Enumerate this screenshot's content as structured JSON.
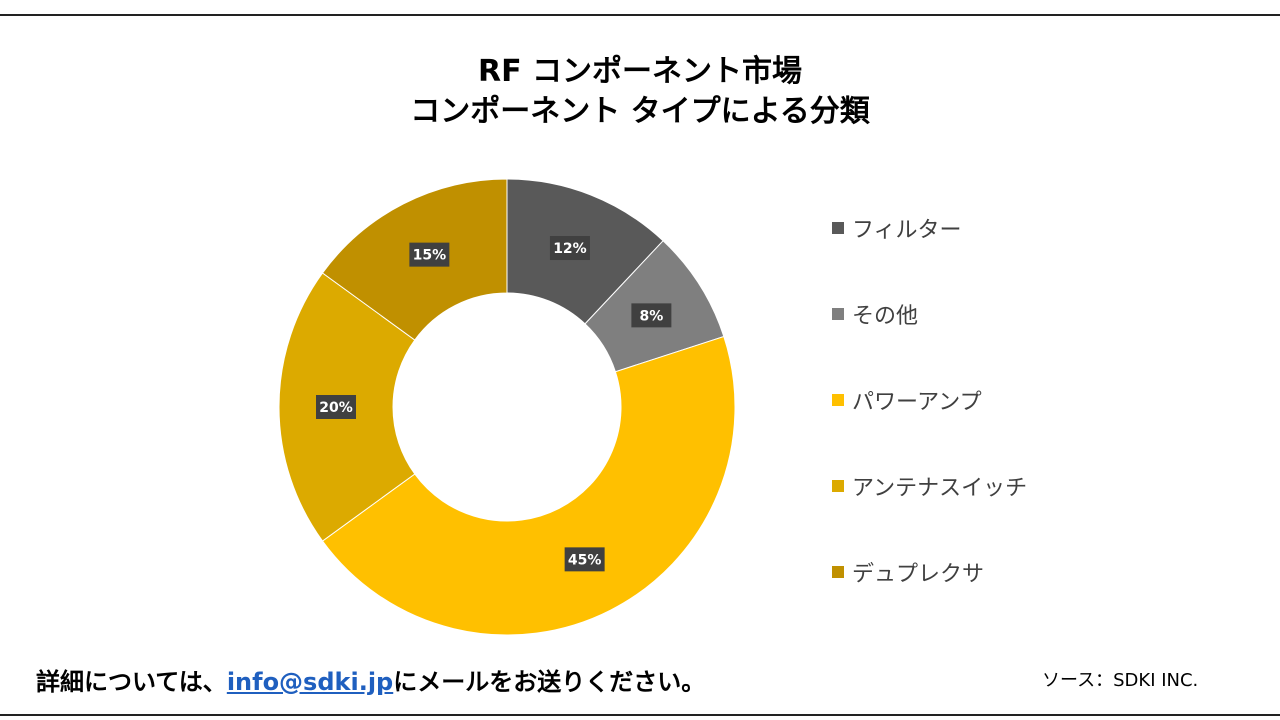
{
  "title": {
    "line1": "RF コンポーネント市場",
    "line2": "コンポーネント タイプによる分類"
  },
  "chart_data": {
    "type": "pie",
    "variant": "donut",
    "title": "RF コンポーネント市場 コンポーネント タイプによる分類",
    "categories": [
      "フィルター",
      "その他",
      "パワーアンプ",
      "アンテナスイッチ",
      "デュプレクサ"
    ],
    "values": [
      12,
      8,
      45,
      20,
      15
    ],
    "labels": [
      "12%",
      "8%",
      "45%",
      "20%",
      "15%"
    ],
    "colors": [
      "#595959",
      "#7f7f7f",
      "#ffc000",
      "#dcaa00",
      "#c09000"
    ],
    "legend_position": "right"
  },
  "footer": {
    "contact_prefix": "詳細については、",
    "email": "info@sdki.jp",
    "contact_suffix": "にメールをお送りください。",
    "source": "ソース：SDKI INC."
  }
}
